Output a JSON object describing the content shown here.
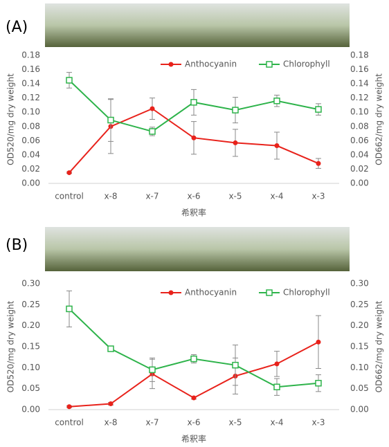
{
  "chart_data": [
    {
      "type": "line",
      "panel_label": "(A)",
      "x_label": "希釈率",
      "y_label": "OD520/mg dry weight",
      "y2_label": "OD662/mg dry weight",
      "categories": [
        "control",
        "x-8",
        "x-7",
        "x-6",
        "x-5",
        "x-4",
        "x-3"
      ],
      "ylim": [
        0,
        0.18
      ],
      "yticks": [
        {
          "value": 0,
          "label": "0.00"
        },
        {
          "value": 0.02,
          "label": "0.02"
        },
        {
          "value": 0.04,
          "label": "0.04"
        },
        {
          "value": 0.06,
          "label": "0.06"
        },
        {
          "value": 0.08,
          "label": "0.08"
        },
        {
          "value": 0.1,
          "label": "0.10"
        },
        {
          "value": 0.12,
          "label": "0.12"
        },
        {
          "value": 0.14,
          "label": "0.14"
        },
        {
          "value": 0.16,
          "label": "0.16"
        },
        {
          "value": 0.18,
          "label": "0.18"
        }
      ],
      "y2lim": [
        0,
        0.18
      ],
      "y2ticks": [
        {
          "value": 0,
          "label": "0.00"
        },
        {
          "value": 0.02,
          "label": "0.02"
        },
        {
          "value": 0.04,
          "label": "0.04"
        },
        {
          "value": 0.06,
          "label": "0.06"
        },
        {
          "value": 0.08,
          "label": "0.08"
        },
        {
          "value": 0.1,
          "label": "0.10"
        },
        {
          "value": 0.12,
          "label": "0.12"
        },
        {
          "value": 0.14,
          "label": "0.14"
        },
        {
          "value": 0.16,
          "label": "0.16"
        },
        {
          "value": 0.18,
          "label": "0.18"
        }
      ],
      "series": [
        {
          "name": "Anthocyanin",
          "color": "#e8221b",
          "marker": "circle",
          "values": [
            0.015,
            0.08,
            0.105,
            0.064,
            0.057,
            0.053,
            0.028
          ],
          "errors": [
            0.001,
            0.038,
            0.015,
            0.023,
            0.019,
            0.019,
            0.007
          ]
        },
        {
          "name": "Chlorophyll",
          "color": "#2db34a",
          "marker": "square",
          "axis": "y2",
          "values": [
            0.145,
            0.089,
            0.073,
            0.114,
            0.103,
            0.116,
            0.104
          ],
          "errors": [
            0.011,
            0.03,
            0.006,
            0.018,
            0.018,
            0.008,
            0.008
          ]
        }
      ]
    },
    {
      "type": "line",
      "panel_label": "(B)",
      "x_label": "希釈率",
      "y_label": "OD520/mg dry weight",
      "y2_label": "OD662/mg dry weight",
      "categories": [
        "control",
        "x-8",
        "x-7",
        "x-6",
        "x-5",
        "x-4",
        "x-3"
      ],
      "ylim": [
        0,
        0.3
      ],
      "yticks": [
        {
          "value": 0,
          "label": "0.00"
        },
        {
          "value": 0.05,
          "label": "0.05"
        },
        {
          "value": 0.1,
          "label": "0.10"
        },
        {
          "value": 0.15,
          "label": "0.15"
        },
        {
          "value": 0.2,
          "label": "0.20"
        },
        {
          "value": 0.25,
          "label": "0.25"
        },
        {
          "value": 0.3,
          "label": "0.30"
        }
      ],
      "y2lim": [
        0,
        0.3
      ],
      "y2ticks": [
        {
          "value": 0,
          "label": "0.00"
        },
        {
          "value": 0.05,
          "label": "0.05"
        },
        {
          "value": 0.1,
          "label": "0.10"
        },
        {
          "value": 0.15,
          "label": "0.15"
        },
        {
          "value": 0.2,
          "label": "0.20"
        },
        {
          "value": 0.25,
          "label": "0.25"
        },
        {
          "value": 0.3,
          "label": "0.30"
        }
      ],
      "series": [
        {
          "name": "Anthocyanin",
          "color": "#e8221b",
          "marker": "circle",
          "values": [
            0.007,
            0.014,
            0.085,
            0.028,
            0.08,
            0.109,
            0.161
          ],
          "errors": [
            0.002,
            0.003,
            0.035,
            0.003,
            0.043,
            0.03,
            0.063
          ]
        },
        {
          "name": "Chlorophyll",
          "color": "#2db34a",
          "marker": "square",
          "axis": "y2",
          "values": [
            0.24,
            0.145,
            0.095,
            0.121,
            0.106,
            0.054,
            0.063
          ],
          "errors": [
            0.043,
            0.005,
            0.028,
            0.01,
            0.048,
            0.02,
            0.02
          ]
        }
      ]
    }
  ]
}
